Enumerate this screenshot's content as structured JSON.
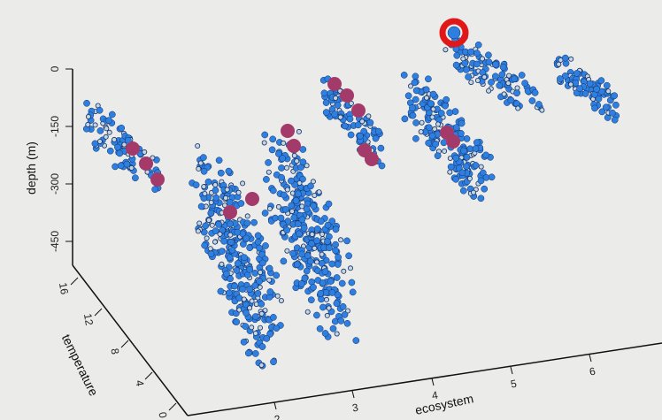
{
  "chart_data": {
    "type": "scatter",
    "title": "",
    "axes": {
      "z": {
        "label": "depth (m)",
        "ticks": [
          "0",
          "-150",
          "-300",
          "-450"
        ],
        "range": [
          -500,
          20
        ]
      },
      "x": {
        "label": "ecosystem",
        "ticks": [
          "2",
          "3",
          "4",
          "5",
          "6"
        ],
        "range": [
          1,
          7
        ]
      },
      "y": {
        "label": "temperature",
        "ticks": [
          "16",
          "12",
          "8",
          "4",
          "0"
        ],
        "range": [
          0,
          16
        ]
      }
    },
    "colors": {
      "point_fill": "#2f7fe0",
      "point_stroke": "#0e2f66",
      "outline_fill": "#c6d4df",
      "highlight": "#a33a6a",
      "red_ring": "#e01818"
    },
    "series": [
      {
        "ecosystem": 1,
        "depth": [
          -20,
          -300
        ],
        "temperature": [
          15,
          13
        ]
      },
      {
        "ecosystem": 2,
        "depth": [
          -150,
          -450
        ],
        "temperature": [
          11,
          4
        ]
      },
      {
        "ecosystem": 3,
        "depth": [
          -80,
          -450
        ],
        "temperature": [
          11,
          4
        ]
      },
      {
        "ecosystem": 4,
        "depth": [
          -20,
          -300
        ],
        "temperature": [
          11,
          4
        ]
      },
      {
        "ecosystem": 5,
        "depth": [
          -10,
          -350
        ],
        "temperature": [
          11,
          4
        ]
      },
      {
        "ecosystem": 6,
        "depth": [
          0,
          -150
        ],
        "temperature": [
          11,
          4
        ]
      },
      {
        "ecosystem": 7,
        "depth": [
          0,
          -150
        ],
        "temperature": [
          11,
          4
        ]
      }
    ]
  }
}
